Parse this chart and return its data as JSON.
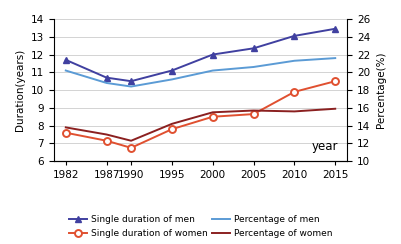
{
  "years": [
    1982,
    1987,
    1990,
    1995,
    2000,
    2005,
    2010,
    2015
  ],
  "single_duration_men": [
    11.7,
    10.7,
    10.5,
    11.1,
    12.0,
    12.35,
    13.05,
    13.45
  ],
  "single_duration_women": [
    7.6,
    7.15,
    6.75,
    7.8,
    8.5,
    8.65,
    9.9,
    10.5
  ],
  "percentage_men": [
    20.2,
    18.8,
    18.4,
    19.2,
    20.2,
    20.6,
    21.3,
    21.6
  ],
  "percentage_women": [
    13.8,
    13.0,
    12.3,
    14.2,
    15.5,
    15.7,
    15.6,
    15.9
  ],
  "left_ylim": [
    6,
    14
  ],
  "left_yticks": [
    6,
    7,
    8,
    9,
    10,
    11,
    12,
    13,
    14
  ],
  "right_ylim": [
    10,
    26
  ],
  "right_yticks": [
    10,
    12,
    14,
    16,
    18,
    20,
    22,
    24,
    26
  ],
  "color_men_duration": "#4040a0",
  "color_women_duration": "#e05030",
  "color_men_pct": "#5b9bd5",
  "color_women_pct": "#8b2020",
  "ylabel_left": "Duration(years)",
  "ylabel_right": "Percentage(%)",
  "xlabel": "year",
  "legend_labels": [
    "Single duration of men",
    "Single duration of women",
    "Percentage of men",
    "Percentage of women"
  ],
  "bg_color": "#ffffff",
  "xlim": [
    1980.5,
    2016.5
  ]
}
